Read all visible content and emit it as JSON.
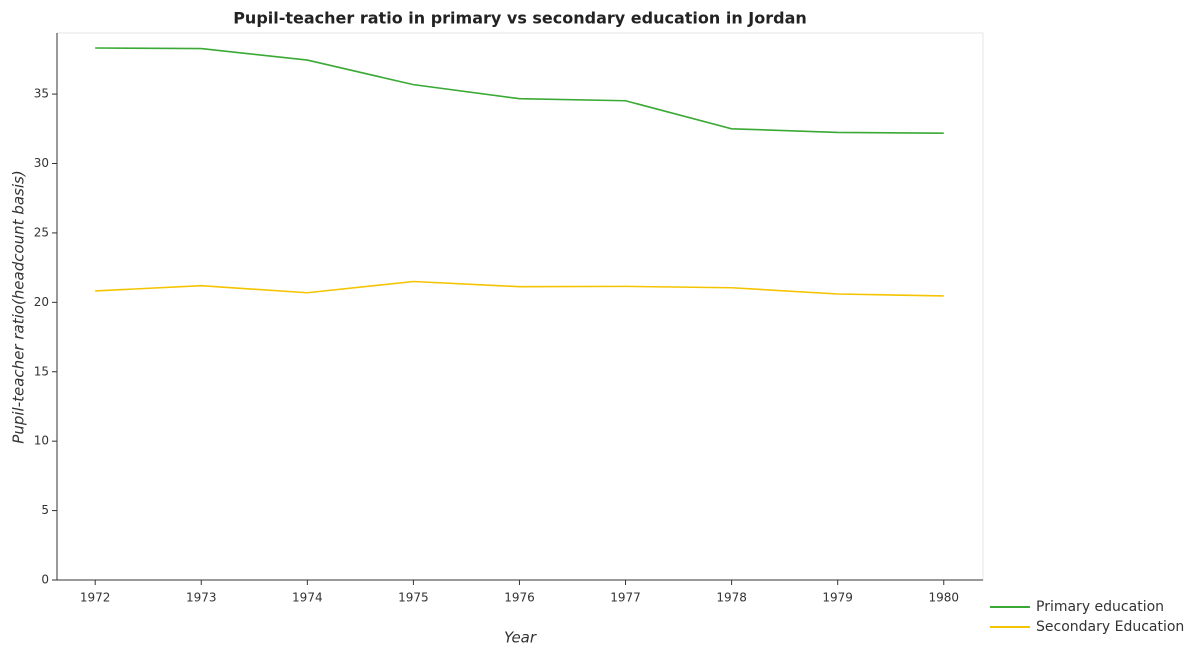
{
  "chart_data": {
    "type": "line",
    "title": "Pupil-teacher ratio in primary vs secondary education in Jordan",
    "x_label": "Year",
    "y_label": "Pupil-teacher ratio(headcount basis)",
    "x": [
      1972,
      1973,
      1974,
      1975,
      1976,
      1977,
      1978,
      1979,
      1980
    ],
    "series": [
      {
        "name": "Primary education",
        "color": "#3aa935",
        "values": [
          38.32,
          38.28,
          37.45,
          35.68,
          34.67,
          34.52,
          32.5,
          32.24,
          32.18
        ]
      },
      {
        "name": "Secondary Education",
        "color": "#f5c400",
        "values": [
          20.82,
          21.2,
          20.69,
          21.5,
          21.13,
          21.15,
          21.05,
          20.6,
          20.46
        ]
      }
    ],
    "xlim": [
      1971.64,
      1980.37
    ],
    "xticks": [
      1972,
      1973,
      1974,
      1975,
      1976,
      1977,
      1978,
      1979,
      1980
    ],
    "ylim": [
      0,
      39.4
    ],
    "yticks": [
      0,
      5,
      10,
      15,
      20,
      25,
      30,
      35
    ],
    "grid": false,
    "legend": "lower right"
  }
}
